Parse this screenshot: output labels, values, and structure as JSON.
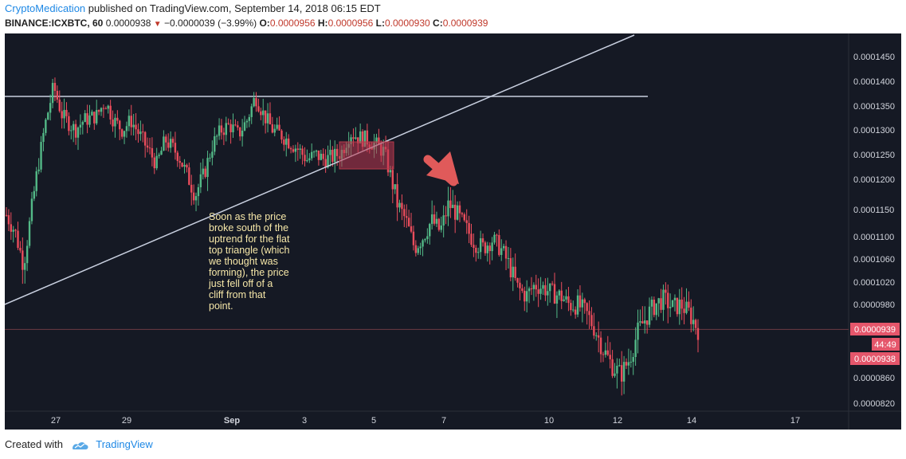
{
  "header": {
    "author": "CryptoMedication",
    "published_text": " published on TradingView.com, September 14, 2018 06:15 EDT"
  },
  "symbol_line": {
    "symbol": "BINANCE:ICXBTC, 60",
    "last": "0.0000938",
    "change": "−0.0000039 (−3.99%)",
    "o_label": "O:",
    "o": "0.0000956",
    "h_label": "H:",
    "h": "0.0000956",
    "l_label": "L:",
    "l": "0.0000930",
    "c_label": "C:",
    "c": "0.0000939"
  },
  "price_badges": {
    "upper": "0.0000939",
    "timer": "44:49",
    "lower": "0.0000938"
  },
  "annotation": [
    "Soon as the price",
    "broke south of the",
    "uptrend for the flat",
    "top triangle (which",
    "we thought was",
    "forming), the price",
    "just fell off of a",
    "cliff from that",
    "point."
  ],
  "footer": {
    "created_with": "Created with",
    "brand": "TradingView"
  },
  "colors": {
    "background": "#151924",
    "bull": "#53b987",
    "bear": "#eb4d5c",
    "line": "#c9d0e0",
    "annotation_text": "#f6e7a8",
    "arrow": "#e05a5a"
  },
  "chart_data": {
    "type": "candlestick",
    "y_axis_ticks": [
      "0.0001450",
      "0.0001400",
      "0.0001350",
      "0.0001300",
      "0.0001250",
      "0.0001200",
      "0.0001150",
      "0.0001100",
      "0.0001060",
      "0.0001020",
      "0.0000980",
      "0.0000860",
      "0.0000820"
    ],
    "x_axis_ticks": [
      "27",
      "29",
      "Sep",
      "3",
      "5",
      "7",
      "10",
      "12",
      "14",
      "17"
    ],
    "horizontal_level": 0.0001368,
    "current_price_line": 9.39e-05,
    "price_path": [
      [
        0,
        0.000114
      ],
      [
        2,
        0.000111
      ],
      [
        4,
        0.000105
      ],
      [
        6,
        0.0001155
      ],
      [
        9,
        0.000131
      ],
      [
        11,
        0.000139
      ],
      [
        13,
        0.000133
      ],
      [
        16,
        0.00013
      ],
      [
        18,
        0.000132
      ],
      [
        21,
        0.000133
      ],
      [
        23,
        0.000136
      ],
      [
        25,
        0.000132
      ],
      [
        27,
        0.00013
      ],
      [
        29,
        0.000132
      ],
      [
        31,
        0.000129
      ],
      [
        33,
        0.000126
      ],
      [
        35,
        0.000123
      ],
      [
        37,
        0.000128
      ],
      [
        40,
        0.000125
      ],
      [
        42,
        0.000121
      ],
      [
        44,
        0.0001175
      ],
      [
        46,
        0.000121
      ],
      [
        48,
        0.000127
      ],
      [
        50,
        0.00013
      ],
      [
        52,
        0.000131
      ],
      [
        54,
        0.000129
      ],
      [
        56,
        0.000132
      ],
      [
        58,
        0.000137
      ],
      [
        60,
        0.000133
      ],
      [
        62,
        0.00013
      ],
      [
        64,
        0.000129
      ],
      [
        66,
        0.0001275
      ],
      [
        68,
        0.000126
      ],
      [
        70,
        0.000124
      ],
      [
        72,
        0.000125
      ],
      [
        74,
        0.000124
      ],
      [
        76,
        0.0001245
      ],
      [
        78,
        0.0001255
      ],
      [
        80,
        0.0001295
      ],
      [
        82,
        0.0001285
      ],
      [
        84,
        0.000128
      ],
      [
        86,
        0.000127
      ],
      [
        88,
        0.0001255
      ],
      [
        89,
        0.000122
      ],
      [
        91,
        0.000116
      ],
      [
        93,
        0.000113
      ],
      [
        95,
        0.000108
      ],
      [
        97,
        0.00011
      ],
      [
        99,
        0.000113
      ],
      [
        101,
        0.000111
      ],
      [
        103,
        0.000116
      ],
      [
        105,
        0.000114
      ],
      [
        107,
        0.0001115
      ],
      [
        109,
        0.000109
      ],
      [
        111,
        0.000108
      ],
      [
        113,
        0.0001095
      ],
      [
        115,
        0.000108
      ],
      [
        117,
        0.000105
      ],
      [
        119,
        0.000101
      ],
      [
        121,
        9.95e-05
      ],
      [
        123,
        0.0001015
      ],
      [
        125,
        0.000101
      ],
      [
        127,
        0.0001
      ],
      [
        129,
        9.95e-05
      ],
      [
        131,
        9.8e-05
      ],
      [
        133,
        9.8e-05
      ],
      [
        135,
        9.65e-05
      ],
      [
        137,
        9.4e-05
      ],
      [
        139,
        9.05e-05
      ],
      [
        141,
        8.8e-05
      ],
      [
        143,
        8.65e-05
      ],
      [
        145,
        8.9e-05
      ],
      [
        147,
        9.35e-05
      ],
      [
        149,
        9.6e-05
      ],
      [
        151,
        9.8e-05
      ],
      [
        153,
        9.9e-05
      ],
      [
        155,
        9.75e-05
      ],
      [
        157,
        9.8e-05
      ],
      [
        159,
        9.65e-05
      ],
      [
        161,
        9.39e-05
      ]
    ],
    "trendline": "rising uptrend line",
    "highlight": "broken support box near Sep 4-5"
  }
}
